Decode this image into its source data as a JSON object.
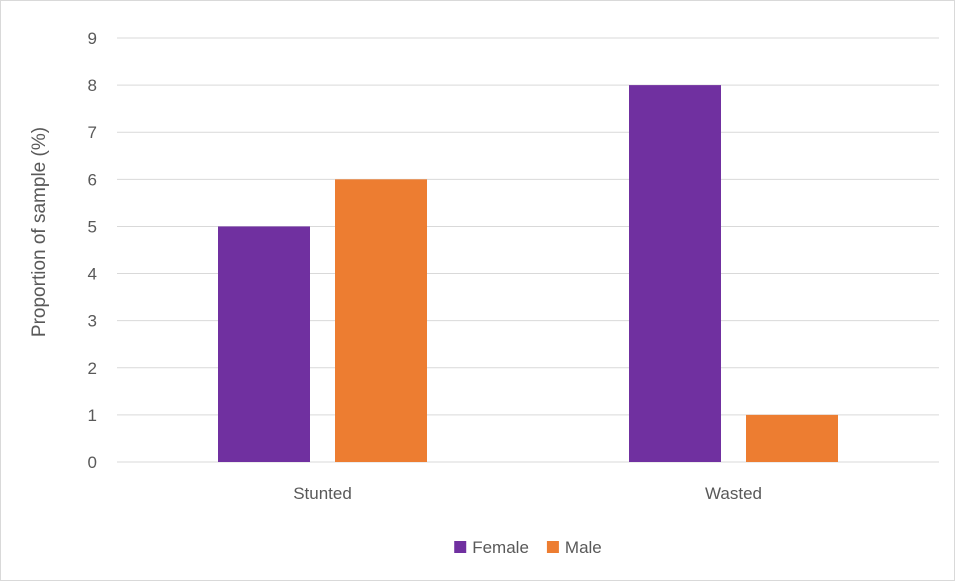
{
  "chart_data": {
    "type": "bar",
    "title": "",
    "xlabel": "",
    "ylabel": "Proportion of sample (%)",
    "categories": [
      "Stunted",
      "Wasted"
    ],
    "series": [
      {
        "name": "Female",
        "color": "#7030a0",
        "values": [
          5,
          8
        ]
      },
      {
        "name": "Male",
        "color": "#ed7d31",
        "values": [
          6,
          1
        ]
      }
    ],
    "ylim": [
      0,
      9
    ],
    "yticks": [
      0,
      1,
      2,
      3,
      4,
      5,
      6,
      7,
      8,
      9
    ],
    "grid": true,
    "legend": "bottom"
  }
}
